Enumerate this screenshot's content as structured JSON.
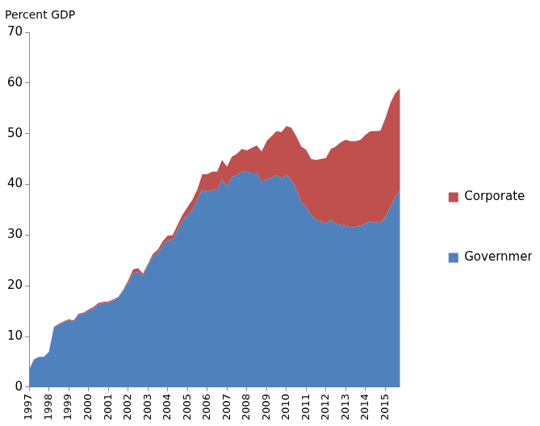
{
  "chart_data": {
    "type": "area",
    "y_label": "Percent GDP",
    "categories": [
      "1997",
      null,
      null,
      null,
      "1998",
      null,
      null,
      null,
      "1999",
      null,
      null,
      null,
      "2000",
      null,
      null,
      null,
      "2001",
      null,
      null,
      null,
      "2002",
      null,
      null,
      null,
      "2003",
      null,
      null,
      null,
      "2004",
      null,
      null,
      null,
      "2005",
      null,
      null,
      null,
      "2006",
      null,
      null,
      null,
      "2007",
      null,
      null,
      null,
      "2008",
      null,
      null,
      null,
      "2009",
      null,
      null,
      null,
      "2010",
      null,
      null,
      null,
      "2011",
      null,
      null,
      null,
      "2012",
      null,
      null,
      null,
      "2013",
      null,
      null,
      null,
      "2014",
      null,
      null,
      null,
      "2015",
      null,
      null,
      null
    ],
    "series": [
      {
        "name": "Government",
        "color": "#4f81bd",
        "values": [
          3.5,
          5.5,
          6.0,
          6.0,
          7.0,
          11.7,
          12.3,
          12.8,
          13.2,
          13.0,
          14.3,
          14.5,
          15.0,
          15.5,
          16.3,
          16.5,
          16.6,
          17.0,
          17.6,
          19.0,
          20.5,
          22.5,
          22.7,
          22.0,
          24.0,
          25.8,
          26.5,
          28.0,
          29.0,
          29.0,
          31.0,
          32.8,
          34.0,
          35.0,
          37.0,
          39.0,
          38.5,
          39.0,
          38.8,
          41.0,
          39.5,
          41.5,
          41.8,
          42.5,
          42.5,
          42.3,
          42.3,
          40.5,
          41.0,
          41.3,
          41.8,
          41.2,
          41.8,
          41.0,
          39.0,
          36.5,
          35.5,
          34.0,
          33.0,
          32.7,
          32.3,
          33.0,
          32.3,
          32.0,
          31.8,
          31.6,
          31.6,
          31.8,
          32.3,
          32.7,
          32.5,
          32.5,
          33.5,
          35.5,
          37.5,
          38.8
        ]
      },
      {
        "name": "Corporate",
        "color": "#c0504d",
        "values": [
          0,
          0,
          0,
          0,
          0,
          0.2,
          0.2,
          0.2,
          0.2,
          0.2,
          0.2,
          0.2,
          0.3,
          0.3,
          0.3,
          0.3,
          0.3,
          0.3,
          0.2,
          0.2,
          0.5,
          0.7,
          0.8,
          0.4,
          0.3,
          0.5,
          0.6,
          0.8,
          0.9,
          1.0,
          1.0,
          1.2,
          1.5,
          2.0,
          2.0,
          3.0,
          3.5,
          3.5,
          3.7,
          3.8,
          4.0,
          4.0,
          4.2,
          4.5,
          4.2,
          4.9,
          5.4,
          6.0,
          7.5,
          8.2,
          8.7,
          9.1,
          9.7,
          10.2,
          10.5,
          11.0,
          11.3,
          11.0,
          11.8,
          12.3,
          12.9,
          14.0,
          15.2,
          16.3,
          17.0,
          16.9,
          16.9,
          17.0,
          17.5,
          17.8,
          18.0,
          18.1,
          19.5,
          20.5,
          20.5,
          20.2
        ]
      }
    ],
    "stacked": true,
    "ylim": [
      0,
      70
    ],
    "yticks": [
      0,
      10,
      20,
      30,
      40,
      50,
      60,
      70
    ],
    "grid": false,
    "legend": "right"
  }
}
